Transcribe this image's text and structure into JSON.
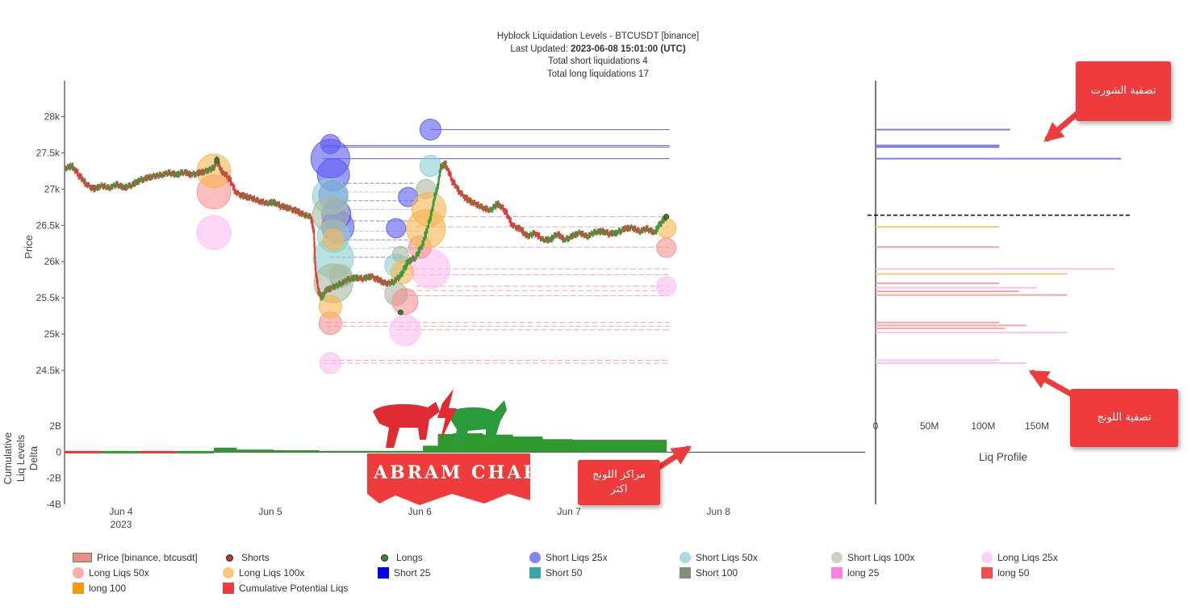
{
  "title": {
    "line1": "Hyblock Liquidation Levels - BTCUSDT [binance]",
    "line2_prefix": "Last Updated: ",
    "line2_value": "2023-06-08 15:01:00 (UTC)",
    "line3": "Total short liquidations 4",
    "line4": "Total long liquidations 17"
  },
  "chart_data": {
    "type": "scatter",
    "price_axis": {
      "label": "Price",
      "ticks": [
        "28k",
        "27.5k",
        "27k",
        "26.5k",
        "26k",
        "25.5k",
        "25k",
        "24.5k"
      ],
      "values": [
        28000,
        27500,
        27000,
        26500,
        26000,
        25500,
        25000,
        24500
      ],
      "range": [
        24000,
        28400
      ]
    },
    "delta_axis": {
      "label": "Cumulative Liq Levels Delta",
      "ticks": [
        "2B",
        "0",
        "-2B",
        "-4B"
      ],
      "values": [
        2,
        0,
        -2,
        -4
      ],
      "range": [
        -4,
        3
      ]
    },
    "x_axis": {
      "ticks": [
        "Jun 4",
        "Jun 5",
        "Jun 6",
        "Jun 7",
        "Jun 8"
      ],
      "sub_tick": "2023",
      "range_days": [
        3.6,
        8.8
      ]
    },
    "profile_axis": {
      "label": "Liq Profile",
      "ticks": [
        "0",
        "50M",
        "100M",
        "150M"
      ],
      "values": [
        0,
        50,
        100,
        150
      ],
      "range": [
        0,
        230
      ]
    },
    "price_series": [
      [
        3.6,
        27280
      ],
      [
        3.65,
        27320
      ],
      [
        3.7,
        27180
      ],
      [
        3.75,
        27060
      ],
      [
        3.8,
        27000
      ],
      [
        3.85,
        27050
      ],
      [
        3.9,
        27020
      ],
      [
        3.95,
        27060
      ],
      [
        4.0,
        27020
      ],
      [
        4.05,
        27050
      ],
      [
        4.1,
        27120
      ],
      [
        4.15,
        27150
      ],
      [
        4.2,
        27180
      ],
      [
        4.25,
        27200
      ],
      [
        4.3,
        27220
      ],
      [
        4.35,
        27200
      ],
      [
        4.4,
        27230
      ],
      [
        4.45,
        27200
      ],
      [
        4.5,
        27220
      ],
      [
        4.55,
        27250
      ],
      [
        4.6,
        27300
      ],
      [
        4.62,
        27400
      ],
      [
        4.65,
        27250
      ],
      [
        4.7,
        27150
      ],
      [
        4.75,
        26950
      ],
      [
        4.8,
        26900
      ],
      [
        4.85,
        26880
      ],
      [
        4.9,
        26840
      ],
      [
        4.95,
        26800
      ],
      [
        5.0,
        26820
      ],
      [
        5.05,
        26760
      ],
      [
        5.1,
        26740
      ],
      [
        5.15,
        26700
      ],
      [
        5.2,
        26650
      ],
      [
        5.25,
        26620
      ],
      [
        5.27,
        26400
      ],
      [
        5.28,
        25900
      ],
      [
        5.3,
        25600
      ],
      [
        5.32,
        25500
      ],
      [
        5.35,
        25600
      ],
      [
        5.4,
        25650
      ],
      [
        5.45,
        25700
      ],
      [
        5.5,
        25750
      ],
      [
        5.55,
        25780
      ],
      [
        5.6,
        25760
      ],
      [
        5.65,
        25800
      ],
      [
        5.7,
        25750
      ],
      [
        5.75,
        25700
      ],
      [
        5.8,
        25720
      ],
      [
        5.85,
        25800
      ],
      [
        5.9,
        26000
      ],
      [
        5.95,
        26050
      ],
      [
        6.0,
        26250
      ],
      [
        6.05,
        26600
      ],
      [
        6.08,
        26900
      ],
      [
        6.1,
        27050
      ],
      [
        6.12,
        27300
      ],
      [
        6.15,
        27350
      ],
      [
        6.2,
        27100
      ],
      [
        6.25,
        26950
      ],
      [
        6.3,
        26850
      ],
      [
        6.35,
        26800
      ],
      [
        6.4,
        26750
      ],
      [
        6.45,
        26700
      ],
      [
        6.5,
        26800
      ],
      [
        6.55,
        26700
      ],
      [
        6.6,
        26500
      ],
      [
        6.65,
        26450
      ],
      [
        6.7,
        26350
      ],
      [
        6.75,
        26400
      ],
      [
        6.8,
        26300
      ],
      [
        6.85,
        26300
      ],
      [
        6.9,
        26380
      ],
      [
        6.95,
        26300
      ],
      [
        7.0,
        26350
      ],
      [
        7.05,
        26400
      ],
      [
        7.1,
        26350
      ],
      [
        7.15,
        26400
      ],
      [
        7.2,
        26420
      ],
      [
        7.25,
        26380
      ],
      [
        7.3,
        26400
      ],
      [
        7.35,
        26450
      ],
      [
        7.4,
        26470
      ],
      [
        7.45,
        26420
      ],
      [
        7.5,
        26450
      ],
      [
        7.55,
        26400
      ],
      [
        7.6,
        26550
      ],
      [
        7.63,
        26620
      ]
    ],
    "liq_levels": [
      {
        "kind": "short",
        "price": 27820,
        "x0": 6.05,
        "size": 14
      },
      {
        "kind": "short",
        "price": 27600,
        "x0": 5.33,
        "size": 10
      },
      {
        "kind": "short",
        "price": 27580,
        "x0": 5.33,
        "size": 8
      },
      {
        "kind": "short",
        "price": 27420,
        "x0": 5.33,
        "size": 24
      },
      {
        "kind": "long",
        "price": 26620,
        "x0": 5.95,
        "size": 11
      },
      {
        "kind": "long",
        "price": 26480,
        "x0": 5.95,
        "size": 9
      },
      {
        "kind": "long",
        "price": 26200,
        "x0": 5.78,
        "size": 11
      },
      {
        "kind": "long",
        "price": 25900,
        "x0": 5.82,
        "size": 16
      },
      {
        "kind": "long",
        "price": 25820,
        "x0": 5.82,
        "size": 9
      },
      {
        "kind": "long",
        "price": 25660,
        "x0": 5.95,
        "size": 12
      },
      {
        "kind": "long",
        "price": 25600,
        "x0": 5.85,
        "size": 10
      },
      {
        "kind": "long",
        "price": 25530,
        "x0": 5.85,
        "size": 10
      },
      {
        "kind": "long",
        "price": 25160,
        "x0": 5.35,
        "size": 9
      },
      {
        "kind": "long",
        "price": 25110,
        "x0": 5.35,
        "size": 11
      },
      {
        "kind": "long",
        "price": 25060,
        "x0": 5.82,
        "size": 9
      },
      {
        "kind": "long",
        "price": 24640,
        "x0": 5.33,
        "size": 10
      },
      {
        "kind": "long",
        "price": 24600,
        "x0": 5.33,
        "size": 9
      }
    ],
    "bubbles": [
      {
        "series": "Short Liqs 25x",
        "d": 6.05,
        "p": 27820,
        "r": 13
      },
      {
        "series": "Short Liqs 25x",
        "d": 5.38,
        "p": 27620,
        "r": 12
      },
      {
        "series": "Short Liqs 25x",
        "d": 5.38,
        "p": 27420,
        "r": 24
      },
      {
        "series": "Short Liqs 25x",
        "d": 5.4,
        "p": 27200,
        "r": 20
      },
      {
        "series": "Short Liqs 25x",
        "d": 5.4,
        "p": 26920,
        "r": 18
      },
      {
        "series": "Short Liqs 25x",
        "d": 5.42,
        "p": 26650,
        "r": 18
      },
      {
        "series": "Short Liqs 25x",
        "d": 5.43,
        "p": 26480,
        "r": 20
      },
      {
        "series": "Short Liqs 25x",
        "d": 5.9,
        "p": 26890,
        "r": 12
      },
      {
        "series": "Short Liqs 25x",
        "d": 5.82,
        "p": 26460,
        "r": 12
      },
      {
        "series": "Short Liqs 50x",
        "d": 6.05,
        "p": 27320,
        "r": 13
      },
      {
        "series": "Short Liqs 50x",
        "d": 5.38,
        "p": 26900,
        "r": 22
      },
      {
        "series": "Short Liqs 50x",
        "d": 5.4,
        "p": 26350,
        "r": 20
      },
      {
        "series": "Short Liqs 50x",
        "d": 5.4,
        "p": 26050,
        "r": 25
      },
      {
        "series": "Short Liqs 50x",
        "d": 5.82,
        "p": 25950,
        "r": 14
      },
      {
        "series": "Short Liqs 100x",
        "d": 6.02,
        "p": 27000,
        "r": 12
      },
      {
        "series": "Short Liqs 100x",
        "d": 5.38,
        "p": 26650,
        "r": 22
      },
      {
        "series": "Short Liqs 100x",
        "d": 5.4,
        "p": 25700,
        "r": 24
      },
      {
        "series": "Short Liqs 100x",
        "d": 5.45,
        "p": 25800,
        "r": 14
      },
      {
        "series": "Short Liqs 100x",
        "d": 5.82,
        "p": 25550,
        "r": 14
      },
      {
        "series": "Short Liqs 100x",
        "d": 5.85,
        "p": 26100,
        "r": 10
      },
      {
        "series": "Long Liqs 25x",
        "d": 4.6,
        "p": 26400,
        "r": 21
      },
      {
        "series": "Long Liqs 25x",
        "d": 5.38,
        "p": 24600,
        "r": 13
      },
      {
        "series": "Long Liqs 25x",
        "d": 5.88,
        "p": 25050,
        "r": 19
      },
      {
        "series": "Long Liqs 25x",
        "d": 6.05,
        "p": 25900,
        "r": 24
      },
      {
        "series": "Long Liqs 25x",
        "d": 7.63,
        "p": 25660,
        "r": 12
      },
      {
        "series": "Long Liqs 50x",
        "d": 4.6,
        "p": 26960,
        "r": 21
      },
      {
        "series": "Long Liqs 50x",
        "d": 5.38,
        "p": 25150,
        "r": 14
      },
      {
        "series": "Long Liqs 50x",
        "d": 5.88,
        "p": 25450,
        "r": 16
      },
      {
        "series": "Long Liqs 50x",
        "d": 5.98,
        "p": 26200,
        "r": 14
      },
      {
        "series": "Long Liqs 50x",
        "d": 7.63,
        "p": 26190,
        "r": 12
      },
      {
        "series": "Long Liqs 100x",
        "d": 4.6,
        "p": 27250,
        "r": 21
      },
      {
        "series": "Long Liqs 100x",
        "d": 5.38,
        "p": 25380,
        "r": 14
      },
      {
        "series": "Long Liqs 100x",
        "d": 5.4,
        "p": 26300,
        "r": 13
      },
      {
        "series": "Long Liqs 100x",
        "d": 5.86,
        "p": 25850,
        "r": 14
      },
      {
        "series": "Long Liqs 100x",
        "d": 6.02,
        "p": 26450,
        "r": 24
      },
      {
        "series": "Long Liqs 100x",
        "d": 6.04,
        "p": 26720,
        "r": 21
      },
      {
        "series": "Long Liqs 100x",
        "d": 7.63,
        "p": 26460,
        "r": 12
      }
    ],
    "markers": [
      {
        "series": "Longs",
        "d": 4.62,
        "p": 27400
      },
      {
        "series": "Longs",
        "d": 5.85,
        "p": 25300
      },
      {
        "series": "Longs",
        "d": 7.63,
        "p": 26620
      }
    ],
    "cumulative_delta": [
      [
        3.6,
        0.0
      ],
      [
        3.85,
        0.0
      ],
      [
        4.1,
        0.0
      ],
      [
        4.35,
        0.0
      ],
      [
        4.6,
        0.35
      ],
      [
        4.75,
        0.2
      ],
      [
        5.0,
        0.15
      ],
      [
        5.3,
        0.1
      ],
      [
        5.85,
        0.1
      ],
      [
        6.0,
        0.5
      ],
      [
        6.1,
        1.4
      ],
      [
        6.2,
        1.45
      ],
      [
        6.4,
        1.35
      ],
      [
        6.6,
        1.2
      ],
      [
        6.8,
        1.0
      ],
      [
        7.0,
        0.95
      ],
      [
        7.3,
        0.95
      ],
      [
        7.63,
        1.2
      ]
    ],
    "liq_profile": [
      {
        "price": 27820,
        "value": 125,
        "color": "#7a7af0"
      },
      {
        "price": 27600,
        "value": 115,
        "color": "#7a7af0"
      },
      {
        "price": 27580,
        "value": 115,
        "color": "#7a7af0"
      },
      {
        "price": 27420,
        "value": 228,
        "color": "#7a7af0"
      },
      {
        "price": 26480,
        "value": 115,
        "color": "#f4c87c"
      },
      {
        "price": 26200,
        "value": 115,
        "color": "#f5a3a3"
      },
      {
        "price": 25900,
        "value": 222,
        "color": "#f8bff0"
      },
      {
        "price": 25830,
        "value": 178,
        "color": "#f4c87c"
      },
      {
        "price": 25700,
        "value": 115,
        "color": "#f5a3a3"
      },
      {
        "price": 25640,
        "value": 150,
        "color": "#f8bff0"
      },
      {
        "price": 25590,
        "value": 133,
        "color": "#f5a3a3"
      },
      {
        "price": 25540,
        "value": 178,
        "color": "#f5a3a3"
      },
      {
        "price": 25160,
        "value": 115,
        "color": "#f5a3a3"
      },
      {
        "price": 25120,
        "value": 140,
        "color": "#f5a3a3"
      },
      {
        "price": 25080,
        "value": 120,
        "color": "#f5a3a3"
      },
      {
        "price": 25020,
        "value": 178,
        "color": "#f8bff0"
      },
      {
        "price": 24640,
        "value": 115,
        "color": "#f8bff0"
      },
      {
        "price": 24600,
        "value": 140,
        "color": "#f8bff0"
      }
    ],
    "current_price": 26640,
    "colors": {
      "Short Liqs 25x": "#5b5bf2",
      "Short Liqs 50x": "#8ccfcf",
      "Short Liqs 100x": "#a9b99f",
      "Long Liqs 25x": "#ffbdf0",
      "Long Liqs 50x": "#f79191",
      "Long Liqs 100x": "#f8b64c",
      "up": "#3e9a3e",
      "down": "#d9423b",
      "short_line": "#4040e0",
      "long_line": "#f08a8a"
    }
  },
  "legend": [
    {
      "label": "Price [binance, btcusdt]",
      "icon": "price-candle",
      "color": "#f08a8a"
    },
    {
      "label": "Shorts",
      "icon": "dot-small",
      "color": "#c0392b"
    },
    {
      "label": "Longs",
      "icon": "dot-small",
      "color": "#2e8b2e"
    },
    {
      "label": "Short Liqs 25x",
      "icon": "dot",
      "color": "#5b5bf2"
    },
    {
      "label": "Short Liqs 50x",
      "icon": "dot",
      "color": "#8ccfcf"
    },
    {
      "label": "Short Liqs 100x",
      "icon": "dot",
      "color": "#b8c4af"
    },
    {
      "label": "Long Liqs 25x",
      "icon": "dot",
      "color": "#ffbdf0"
    },
    {
      "label": "Long Liqs 50x",
      "icon": "dot",
      "color": "#f79191"
    },
    {
      "label": "Long Liqs 100x",
      "icon": "dot",
      "color": "#f8b64c"
    },
    {
      "label": "Short 25",
      "icon": "square",
      "color": "#0000ee"
    },
    {
      "label": "Short 50",
      "icon": "square",
      "color": "#3aa6a6"
    },
    {
      "label": "Short 100",
      "icon": "square",
      "color": "#7e8f74"
    },
    {
      "label": "long 25",
      "icon": "square",
      "color": "#ff7fe0"
    },
    {
      "label": "long 50",
      "icon": "square",
      "color": "#ef4f4f"
    },
    {
      "label": "long 100",
      "icon": "square",
      "color": "#f39a0b"
    },
    {
      "label": "Cumulative Potential Liqs",
      "icon": "square",
      "color": "#ef3b3b"
    }
  ],
  "callouts": {
    "shorts": "تصفية الشورت",
    "longs": "تصفية اللونج",
    "long_centers_line1": "مراكز اللونج",
    "long_centers_line2": "اكثر"
  },
  "logo": {
    "text": "ABRAM CHART"
  }
}
